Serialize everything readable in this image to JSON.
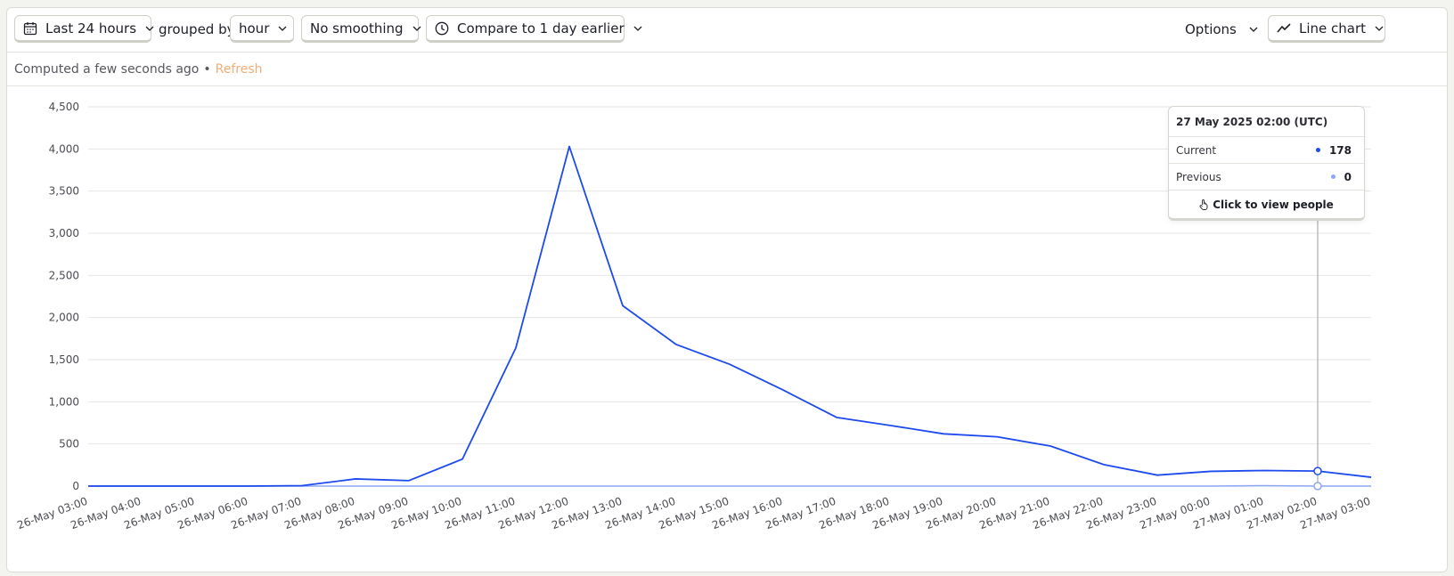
{
  "toolbar": {
    "date_range": "Last 24 hours",
    "grouped_by_label": "grouped by",
    "interval": "hour",
    "smoothing": "No smoothing",
    "compare": "Compare to 1 day earlier",
    "options_label": "Options",
    "chart_type": "Line chart"
  },
  "status": {
    "computed": "Computed a few seconds ago",
    "separator": "•",
    "refresh": "Refresh"
  },
  "tooltip": {
    "title": "27 May 2025 02:00 (UTC)",
    "rows": [
      {
        "label": "Current",
        "value": "178",
        "color": "#1d4aed"
      },
      {
        "label": "Previous",
        "value": "0",
        "color": "#8fa6f2"
      }
    ],
    "action": "Click to view people"
  },
  "colors": {
    "current_series": "#1d4aed",
    "previous_series": "#8fa6f2",
    "accent": "#f0ad77"
  },
  "chart_data": {
    "type": "line",
    "x": [
      "26-May 03:00",
      "26-May 04:00",
      "26-May 05:00",
      "26-May 06:00",
      "26-May 07:00",
      "26-May 08:00",
      "26-May 09:00",
      "26-May 10:00",
      "26-May 11:00",
      "26-May 12:00",
      "26-May 13:00",
      "26-May 14:00",
      "26-May 15:00",
      "26-May 16:00",
      "26-May 17:00",
      "26-May 18:00",
      "26-May 19:00",
      "26-May 20:00",
      "26-May 21:00",
      "26-May 22:00",
      "26-May 23:00",
      "27-May 00:00",
      "27-May 01:00",
      "27-May 02:00",
      "27-May 03:00"
    ],
    "series": [
      {
        "values": [
          0,
          0,
          0,
          0,
          5,
          85,
          65,
          320,
          1640,
          4030,
          2140,
          1680,
          1445,
          1140,
          815,
          720,
          620,
          585,
          475,
          255,
          130,
          175,
          185,
          178,
          105
        ]
      },
      {
        "values": [
          0,
          0,
          0,
          0,
          0,
          0,
          0,
          0,
          0,
          0,
          0,
          0,
          0,
          0,
          0,
          0,
          0,
          0,
          0,
          0,
          0,
          0,
          5,
          0,
          0
        ]
      }
    ],
    "yticks": [
      "0",
      "500",
      "1,000",
      "1,500",
      "2,000",
      "2,500",
      "3,000",
      "3,500",
      "4,000",
      "4,500"
    ],
    "ylim": [
      0,
      4500
    ],
    "grid": true,
    "highlight_index": 23
  }
}
